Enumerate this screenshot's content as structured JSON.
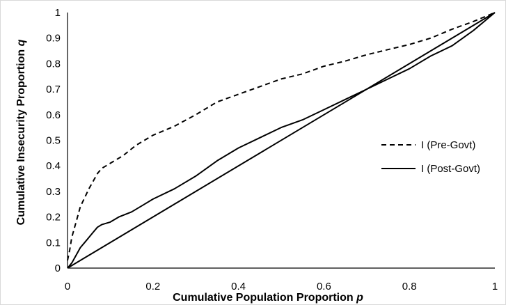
{
  "chart_data": {
    "type": "line",
    "title": "",
    "xlabel": "Cumulative Population Proportion ",
    "xlabel_var": "p",
    "ylabel": "Cumulative Insecurity Proportion ",
    "ylabel_var": "q",
    "xlim": [
      0,
      1
    ],
    "ylim": [
      0,
      1
    ],
    "xticks": [
      "0",
      "0.2",
      "0.4",
      "0.6",
      "0.8",
      "1"
    ],
    "yticks": [
      "0",
      "0.1",
      "0.2",
      "0.3",
      "0.4",
      "0.5",
      "0.6",
      "0.7",
      "0.8",
      "0.9",
      "1"
    ],
    "grid": false,
    "legend_placement": "right",
    "series": [
      {
        "name": "I (Pre-Govt)",
        "style": "dashed",
        "color": "#000000",
        "x": [
          0,
          0.005,
          0.01,
          0.02,
          0.03,
          0.05,
          0.07,
          0.08,
          0.1,
          0.13,
          0.16,
          0.2,
          0.25,
          0.3,
          0.35,
          0.4,
          0.45,
          0.5,
          0.55,
          0.6,
          0.65,
          0.7,
          0.75,
          0.8,
          0.85,
          0.9,
          0.95,
          1
        ],
        "values": [
          0.03,
          0.07,
          0.12,
          0.18,
          0.24,
          0.31,
          0.37,
          0.39,
          0.41,
          0.44,
          0.48,
          0.52,
          0.555,
          0.6,
          0.65,
          0.68,
          0.71,
          0.74,
          0.76,
          0.79,
          0.81,
          0.835,
          0.855,
          0.875,
          0.9,
          0.935,
          0.965,
          1
        ]
      },
      {
        "name": "I (Post-Govt)",
        "style": "solid",
        "color": "#000000",
        "x": [
          0,
          0.01,
          0.02,
          0.03,
          0.04,
          0.05,
          0.06,
          0.07,
          0.08,
          0.1,
          0.12,
          0.15,
          0.18,
          0.2,
          0.25,
          0.3,
          0.35,
          0.4,
          0.45,
          0.5,
          0.55,
          0.6,
          0.65,
          0.7,
          0.75,
          0.8,
          0.85,
          0.9,
          0.95,
          1
        ],
        "values": [
          0,
          0.02,
          0.05,
          0.08,
          0.1,
          0.12,
          0.14,
          0.16,
          0.17,
          0.18,
          0.2,
          0.22,
          0.25,
          0.27,
          0.31,
          0.36,
          0.42,
          0.47,
          0.51,
          0.55,
          0.58,
          0.62,
          0.66,
          0.7,
          0.74,
          0.78,
          0.83,
          0.87,
          0.93,
          1
        ]
      },
      {
        "name": "",
        "style": "solid",
        "color": "#000000",
        "x": [
          0,
          1
        ],
        "values": [
          0,
          1
        ]
      }
    ]
  }
}
